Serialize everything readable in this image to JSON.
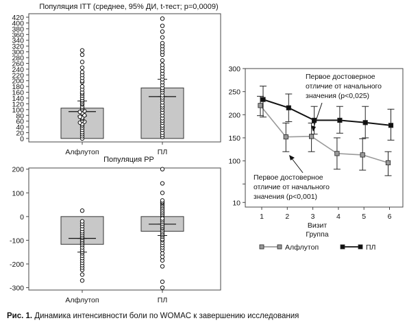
{
  "caption": {
    "label": "Рис. 1.",
    "text": " Динамика интенсивности боли по WOMAC к завершению исследования"
  },
  "chart_data": [
    {
      "id": "itt",
      "type": "bar",
      "title": "Популяция ITT (среднее, 95% ДИ, t-тест; p=0,0009)",
      "categories": [
        "Алфлутоп",
        "ПЛ"
      ],
      "values": [
        105,
        175
      ],
      "ci": [
        [
          78,
          130
        ],
        [
          145,
          205
        ]
      ],
      "median": [
        93,
        145
      ],
      "yticks": [
        0,
        20,
        40,
        60,
        80,
        100,
        120,
        140,
        160,
        180,
        200,
        220,
        240,
        260,
        280,
        300,
        320,
        340,
        360,
        380,
        400,
        420
      ],
      "ylim": [
        -12,
        432
      ],
      "points": [
        [
          0,
          8,
          15,
          22,
          30,
          38,
          45,
          50,
          55,
          58,
          62,
          68,
          72,
          75,
          80,
          88,
          92,
          95,
          100,
          105,
          110,
          118,
          122,
          128,
          133,
          140,
          148,
          155,
          160,
          170,
          180,
          195,
          200,
          210,
          220,
          230,
          245,
          265,
          290,
          305
        ],
        [
          5,
          12,
          20,
          30,
          38,
          45,
          55,
          62,
          70,
          80,
          90,
          100,
          108,
          115,
          125,
          135,
          142,
          150,
          160,
          168,
          175,
          185,
          195,
          205,
          215,
          225,
          235,
          245,
          255,
          270,
          290,
          300,
          310,
          320,
          330,
          350,
          370,
          390,
          415
        ]
      ]
    },
    {
      "id": "pp",
      "type": "bar",
      "title": "Популяция PP",
      "categories": [
        "Алфлутоп",
        "ПЛ"
      ],
      "values": [
        -117,
        -62
      ],
      "ci": [
        [
          -150,
          -92
        ],
        [
          -80,
          -32
        ]
      ],
      "median": [
        -92,
        -32
      ],
      "yticks": [
        200,
        100,
        0,
        -100,
        -200,
        -300
      ],
      "ylim": [
        -310,
        205
      ],
      "points": [
        [
          -270,
          -245,
          -225,
          -215,
          -205,
          -195,
          -185,
          -175,
          -165,
          -155,
          -148,
          -140,
          -130,
          -120,
          -112,
          -105,
          -98,
          -90,
          -85,
          -78,
          -70,
          -62,
          -52,
          -40,
          -30,
          -20,
          25
        ],
        [
          -300,
          -275,
          -210,
          -185,
          -170,
          -155,
          -140,
          -130,
          -120,
          -110,
          -100,
          -95,
          -85,
          -78,
          -72,
          -65,
          -58,
          -50,
          -45,
          -38,
          -30,
          -22,
          -15,
          -8,
          0,
          8,
          15,
          22,
          30,
          38,
          45,
          52,
          58,
          62,
          68,
          100,
          140,
          200
        ]
      ]
    },
    {
      "id": "visits",
      "type": "line",
      "xlabel": "Визит",
      "legend_title": "Группа",
      "categories": [
        1,
        2,
        3,
        4,
        5,
        6
      ],
      "yticks": [
        10,
        50,
        100,
        150,
        200,
        250,
        300
      ],
      "ytick_labels": [
        "10",
        "",
        "100",
        "150",
        "200",
        "250",
        "300"
      ],
      "ylim": [
        0,
        300
      ],
      "series": [
        {
          "name": "Алфлутоп",
          "color": "#999999",
          "values": [
            220,
            152,
            153,
            116,
            113,
            96
          ],
          "ci_lo": [
            198,
            120,
            120,
            82,
            80,
            68
          ],
          "ci_hi": [
            240,
            182,
            182,
            150,
            148,
            120
          ]
        },
        {
          "name": "ПЛ",
          "color": "#111111",
          "values": [
            233,
            215,
            188,
            188,
            183,
            177
          ],
          "ci_lo": [
            195,
            185,
            158,
            160,
            150,
            145
          ],
          "ci_hi": [
            262,
            245,
            218,
            218,
            218,
            212
          ]
        }
      ],
      "annotations": [
        {
          "lines": [
            "Первое достоверное",
            "отличие от начального",
            "значения (p<0,025)"
          ]
        },
        {
          "lines": [
            "Первое достоверное",
            "отличие от начального",
            "значения (p<0,001)"
          ]
        }
      ]
    }
  ]
}
